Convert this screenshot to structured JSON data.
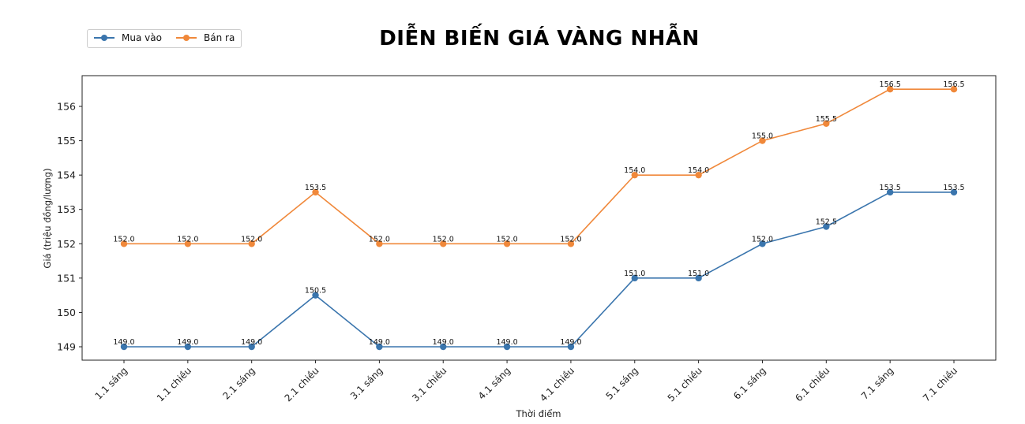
{
  "chart_data": {
    "type": "line",
    "title": "DIỄN BIẾN GIÁ VÀNG NHẪN",
    "xlabel": "Thời điểm",
    "ylabel": "Giá (triệu đồng/lượng)",
    "categories": [
      "1.1 sáng",
      "1.1 chiều",
      "2.1 sáng",
      "2.1 chiều",
      "3.1 sáng",
      "3.1 chiều",
      "4.1 sáng",
      "4.1 chiều",
      "5.1 sáng",
      "5.1 chiều",
      "6.1 sáng",
      "6.1 chiều",
      "7.1 sáng",
      "7.1 chiều"
    ],
    "series": [
      {
        "name": "Mua vào",
        "color": "#3a75ad",
        "values": [
          149.0,
          149.0,
          149.0,
          150.5,
          149.0,
          149.0,
          149.0,
          149.0,
          151.0,
          151.0,
          152.0,
          152.5,
          153.5,
          153.5
        ]
      },
      {
        "name": "Bán ra",
        "color": "#f0883a",
        "values": [
          152.0,
          152.0,
          152.0,
          153.5,
          152.0,
          152.0,
          152.0,
          152.0,
          154.0,
          154.0,
          155.0,
          155.5,
          156.5,
          156.5
        ]
      }
    ],
    "yticks": [
      149,
      150,
      151,
      152,
      153,
      154,
      155,
      156
    ],
    "ylim": [
      148.63,
      156.87
    ],
    "grid": false,
    "legend_position": "upper left (outside plot)",
    "data_labels": true
  },
  "legend": {
    "items": [
      {
        "label": "Mua vào",
        "color": "#3a75ad"
      },
      {
        "label": "Bán ra",
        "color": "#f0883a"
      }
    ]
  }
}
